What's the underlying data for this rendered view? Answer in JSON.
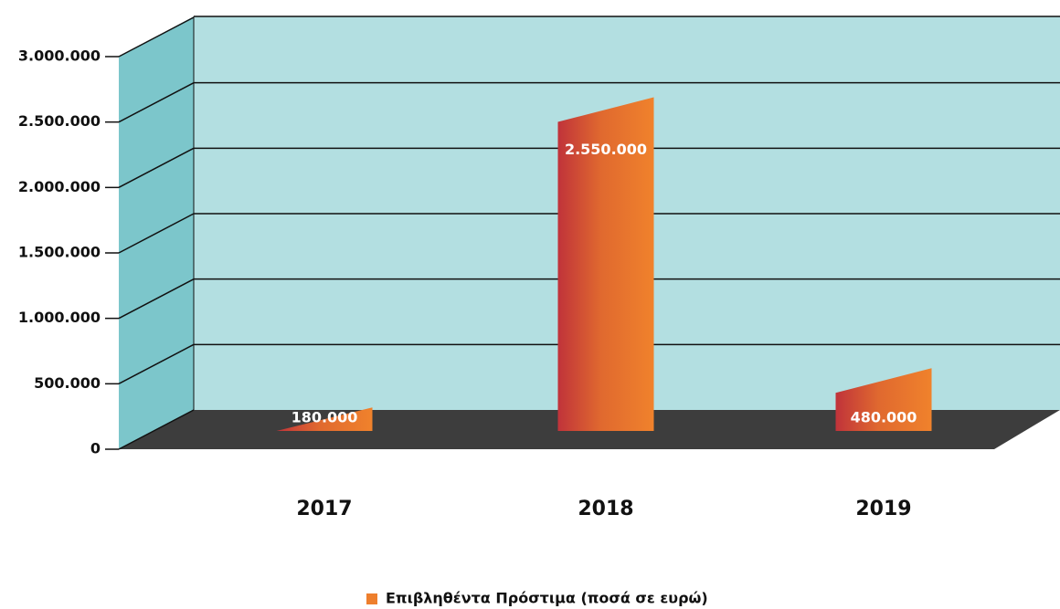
{
  "chart_data": {
    "type": "bar3d",
    "categories": [
      "2017",
      "2018",
      "2019"
    ],
    "series": [
      {
        "name": "Επιβληθέντα Πρόστιμα (ποσά σε ευρώ)",
        "color": "#ee7f2d",
        "values": [
          180000,
          2550000,
          480000
        ],
        "value_labels": [
          "180.000",
          "2.550.000",
          "480.000"
        ]
      }
    ],
    "ylim": [
      0,
      3000000
    ],
    "yticks": [
      0,
      {
        "value": 500000,
        "label": "500.000"
      },
      {
        "value": 1000000,
        "label": "1.000.000"
      },
      {
        "value": 1500000,
        "label": "1.500.000"
      },
      {
        "value": 2000000,
        "label": "2.000.000"
      },
      {
        "value": 2500000,
        "label": "2.500.000"
      },
      {
        "value": 3000000,
        "label": "3.000.000"
      }
    ],
    "grid": true,
    "legend": "bottom"
  }
}
